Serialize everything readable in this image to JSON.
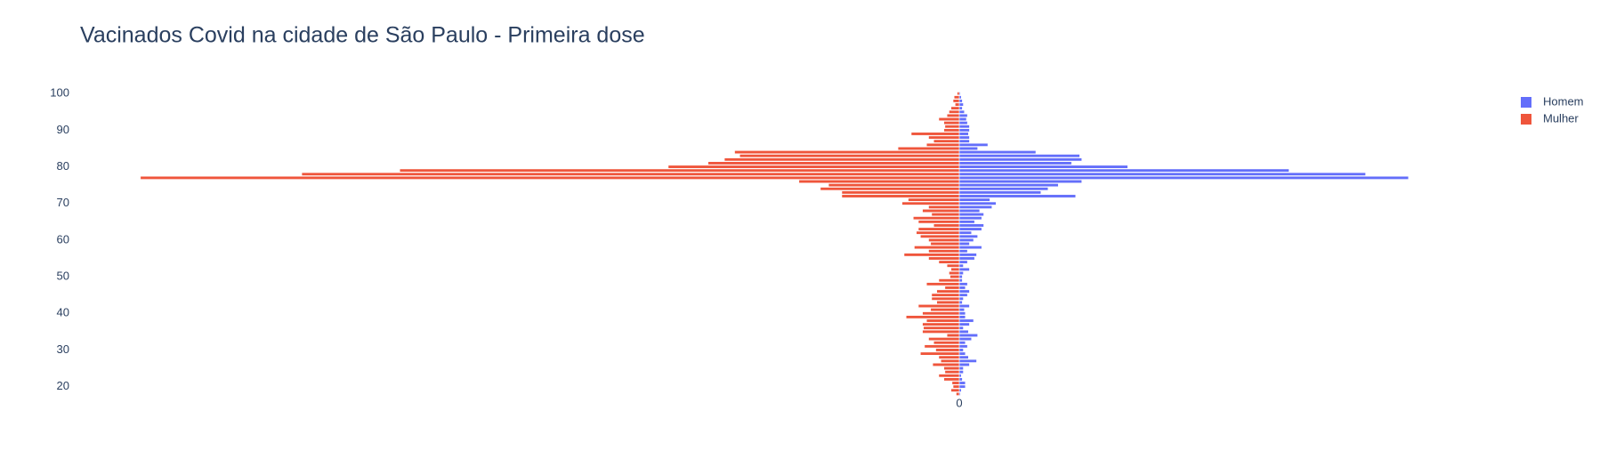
{
  "chart_data": {
    "type": "bar",
    "orientation": "horizontal",
    "barmode": "overlay",
    "title": "Vacinados Covid na cidade de São Paulo - Primeira dose",
    "y": [
      18,
      19,
      20,
      21,
      22,
      23,
      24,
      25,
      26,
      27,
      28,
      29,
      30,
      31,
      32,
      33,
      34,
      35,
      36,
      37,
      38,
      39,
      40,
      41,
      42,
      43,
      44,
      45,
      46,
      47,
      48,
      49,
      50,
      51,
      52,
      53,
      54,
      55,
      56,
      57,
      58,
      59,
      60,
      61,
      62,
      63,
      64,
      65,
      66,
      67,
      68,
      69,
      70,
      71,
      72,
      73,
      74,
      75,
      76,
      77,
      78,
      79,
      80,
      81,
      82,
      83,
      84,
      85,
      86,
      87,
      88,
      89,
      90,
      91,
      92,
      93,
      94,
      95,
      96,
      97,
      98,
      99,
      100
    ],
    "series": [
      {
        "name": "Homem",
        "color": "#636efa",
        "values": [
          1,
          2,
          6,
          6,
          3,
          2,
          4,
          4,
          10,
          17,
          9,
          6,
          4,
          8,
          6,
          12,
          18,
          9,
          4,
          10,
          14,
          6,
          6,
          5,
          10,
          3,
          4,
          8,
          10,
          6,
          8,
          3,
          3,
          4,
          10,
          4,
          8,
          15,
          17,
          8,
          22,
          10,
          14,
          18,
          12,
          22,
          24,
          15,
          22,
          24,
          20,
          32,
          36,
          30,
          114,
          80,
          87,
          97,
          120,
          440,
          398,
          323,
          165,
          110,
          120,
          118,
          75,
          18,
          28,
          10,
          10,
          9,
          10,
          10,
          8,
          7,
          8,
          5,
          3,
          4,
          3,
          2,
          1
        ]
      },
      {
        "name": "Mulher",
        "color": "#EF553B",
        "values": [
          -3,
          -8,
          -6,
          -7,
          -15,
          -20,
          -14,
          -15,
          -26,
          -18,
          -20,
          -38,
          -23,
          -34,
          -25,
          -30,
          -12,
          -36,
          -35,
          -36,
          -32,
          -52,
          -36,
          -28,
          -40,
          -22,
          -27,
          -27,
          -22,
          -14,
          -32,
          -20,
          -9,
          -10,
          -8,
          -12,
          -20,
          -30,
          -54,
          -30,
          -44,
          -28,
          -30,
          -38,
          -42,
          -40,
          -25,
          -40,
          -45,
          -27,
          -36,
          -30,
          -56,
          -50,
          -115,
          -115,
          -136,
          -128,
          -157,
          -802,
          -644,
          -548,
          -285,
          -246,
          -230,
          -215,
          -220,
          -60,
          -32,
          -25,
          -30,
          -47,
          -15,
          -14,
          -15,
          -20,
          -12,
          -10,
          -8,
          -4,
          -6,
          -5,
          -2
        ]
      }
    ],
    "xlim": [
      -862,
      530
    ],
    "xticks": [
      0
    ],
    "ylim": [
      17,
      101.5
    ],
    "yticks": [
      20,
      30,
      40,
      50,
      60,
      70,
      80,
      90,
      100
    ],
    "legend": "top-right"
  }
}
